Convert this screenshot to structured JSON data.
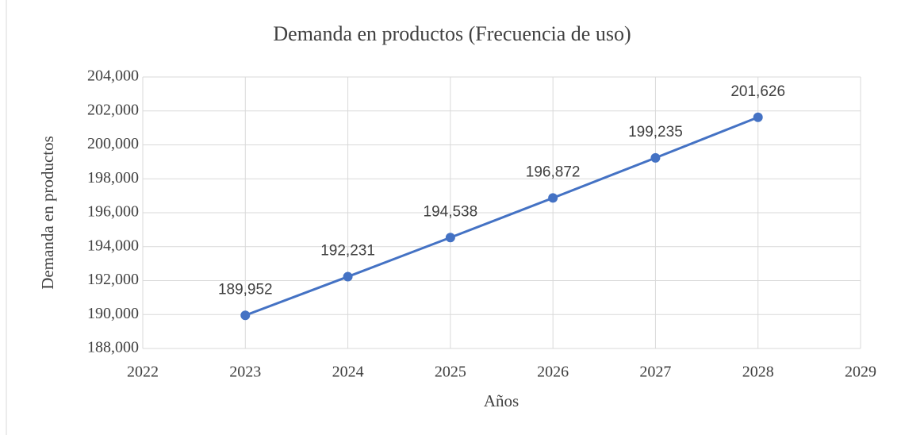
{
  "chart_data": {
    "type": "line",
    "title": "Demanda  en productos  (Frecuencia  de uso)",
    "xlabel": "Años",
    "ylabel": "Demanda en productos",
    "x": [
      2023,
      2024,
      2025,
      2026,
      2027,
      2028
    ],
    "series": [
      {
        "name": "Demanda en productos",
        "color": "#4472c4",
        "values": [
          189952,
          192231,
          194538,
          196872,
          199235,
          201626
        ],
        "value_labels": [
          "189,952",
          "192,231",
          "194,538",
          "196,872",
          "199,235",
          "201,626"
        ]
      }
    ],
    "xlim": [
      2022,
      2029
    ],
    "xticks": [
      2022,
      2023,
      2024,
      2025,
      2026,
      2027,
      2028,
      2029
    ],
    "ylim": [
      188000,
      204000
    ],
    "yticks": [
      {
        "value": 188000,
        "label": "188,000"
      },
      {
        "value": 190000,
        "label": "190,000"
      },
      {
        "value": 192000,
        "label": "192,000"
      },
      {
        "value": 194000,
        "label": "194,000"
      },
      {
        "value": 196000,
        "label": "196,000"
      },
      {
        "value": 198000,
        "label": "198,000"
      },
      {
        "value": 200000,
        "label": "200,000"
      },
      {
        "value": 202000,
        "label": "202,000"
      },
      {
        "value": 204000,
        "label": "204,000"
      }
    ],
    "grid": true
  }
}
